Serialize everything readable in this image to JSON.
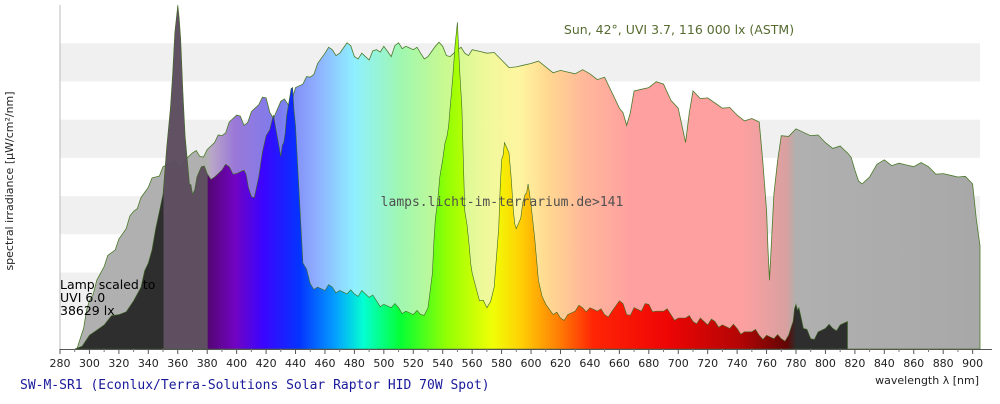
{
  "chart_data": {
    "type": "area",
    "xlabel": "wavelength λ [nm]",
    "ylabel": "spectral irradiance [µW/cm²/nm]",
    "x_ticks": [
      280,
      300,
      320,
      340,
      360,
      380,
      400,
      420,
      440,
      460,
      480,
      500,
      520,
      540,
      560,
      580,
      600,
      620,
      640,
      660,
      680,
      700,
      720,
      740,
      760,
      780,
      800,
      820,
      840,
      860,
      880,
      900
    ],
    "xlim": [
      280,
      905
    ],
    "ylim": [
      0,
      100
    ],
    "grid": "horizontal-bands",
    "annotations": {
      "sun_label": "Sun, 42°, UVI 3.7, 116 000 lx (ASTM)",
      "watermark": "lamps.licht-im-terrarium.de>141",
      "lamp_line1": "Lamp scaled to",
      "lamp_line2": "UVI 6.0",
      "lamp_line3": "38629 lx",
      "footer": "SW-M-SR1 (Econlux/Terra-Solutions Solar Raptor HID 70W Spot)"
    },
    "series": [
      {
        "name": "Sun",
        "x": [
          290,
          293,
          296,
          300,
          305,
          310,
          315,
          320,
          325,
          330,
          335,
          340,
          345,
          350,
          355,
          360,
          365,
          370,
          375,
          380,
          385,
          390,
          395,
          400,
          405,
          410,
          415,
          420,
          425,
          430,
          435,
          440,
          445,
          450,
          455,
          460,
          465,
          470,
          475,
          480,
          485,
          490,
          495,
          500,
          505,
          510,
          515,
          520,
          525,
          530,
          535,
          540,
          545,
          550,
          555,
          560,
          570,
          580,
          590,
          600,
          610,
          620,
          630,
          640,
          650,
          660,
          665,
          670,
          680,
          690,
          700,
          705,
          710,
          720,
          730,
          740,
          750,
          755,
          760,
          762,
          765,
          770,
          780,
          790,
          800,
          810,
          815,
          820,
          825,
          830,
          840,
          850,
          860,
          870,
          880,
          890,
          900,
          905
        ],
        "y": [
          0,
          2,
          6,
          14,
          20,
          24,
          28,
          32,
          35,
          40,
          44,
          47,
          50,
          53,
          54,
          53,
          55,
          57,
          56,
          58,
          60,
          62,
          66,
          68,
          65,
          69,
          71,
          73,
          67,
          72,
          71,
          76,
          77,
          79,
          83,
          86,
          87,
          86,
          89,
          85,
          86,
          84,
          87,
          88,
          85,
          89,
          88,
          87,
          86,
          85,
          88,
          88,
          85,
          87,
          86,
          87,
          86,
          84,
          82,
          83,
          82,
          81,
          80,
          80,
          79,
          70,
          65,
          75,
          76,
          77,
          70,
          60,
          75,
          73,
          70,
          68,
          67,
          66,
          40,
          20,
          45,
          62,
          64,
          62,
          60,
          59,
          57,
          52,
          48,
          50,
          55,
          54,
          53,
          53,
          51,
          50,
          48,
          30
        ]
      },
      {
        "name": "Lamp",
        "x": [
          290,
          300,
          310,
          320,
          330,
          335,
          340,
          345,
          350,
          355,
          358,
          360,
          362,
          365,
          368,
          370,
          373,
          376,
          380,
          385,
          390,
          395,
          400,
          405,
          408,
          412,
          415,
          420,
          425,
          430,
          432,
          434,
          436,
          438,
          440,
          445,
          450,
          455,
          460,
          465,
          470,
          475,
          480,
          485,
          490,
          495,
          500,
          505,
          510,
          515,
          520,
          525,
          530,
          533,
          535,
          538,
          540,
          543,
          545,
          547,
          550,
          553,
          555,
          558,
          560,
          565,
          570,
          575,
          578,
          580,
          582,
          585,
          588,
          590,
          593,
          596,
          598,
          600,
          605,
          610,
          615,
          620,
          625,
          630,
          635,
          640,
          645,
          650,
          655,
          660,
          665,
          670,
          675,
          680,
          685,
          690,
          695,
          700,
          705,
          710,
          715,
          720,
          725,
          730,
          735,
          740,
          745,
          750,
          755,
          760,
          765,
          770,
          775,
          778,
          780,
          782,
          785,
          790,
          795,
          800,
          805,
          810,
          815
        ],
        "y": [
          0,
          4,
          7,
          10,
          14,
          18,
          25,
          35,
          45,
          70,
          92,
          100,
          90,
          62,
          48,
          45,
          50,
          53,
          51,
          50,
          52,
          53,
          51,
          52,
          47,
          44,
          50,
          62,
          68,
          56,
          60,
          68,
          73,
          76,
          65,
          25,
          19,
          18,
          17,
          18,
          17,
          16,
          16,
          17,
          15,
          14,
          13,
          12,
          12,
          11,
          10,
          10,
          12,
          22,
          38,
          50,
          55,
          62,
          70,
          80,
          95,
          70,
          40,
          30,
          22,
          14,
          12,
          18,
          35,
          55,
          60,
          57,
          40,
          35,
          38,
          45,
          48,
          42,
          20,
          13,
          10,
          9,
          10,
          11,
          12,
          12,
          11,
          10,
          11,
          14,
          10,
          12,
          11,
          13,
          11,
          11,
          10,
          9,
          9,
          8,
          9,
          7,
          8,
          7,
          6,
          6,
          5,
          5,
          4,
          4,
          3,
          3,
          4,
          8,
          13,
          12,
          6,
          3,
          5,
          6,
          6,
          7,
          8
        ]
      }
    ]
  }
}
